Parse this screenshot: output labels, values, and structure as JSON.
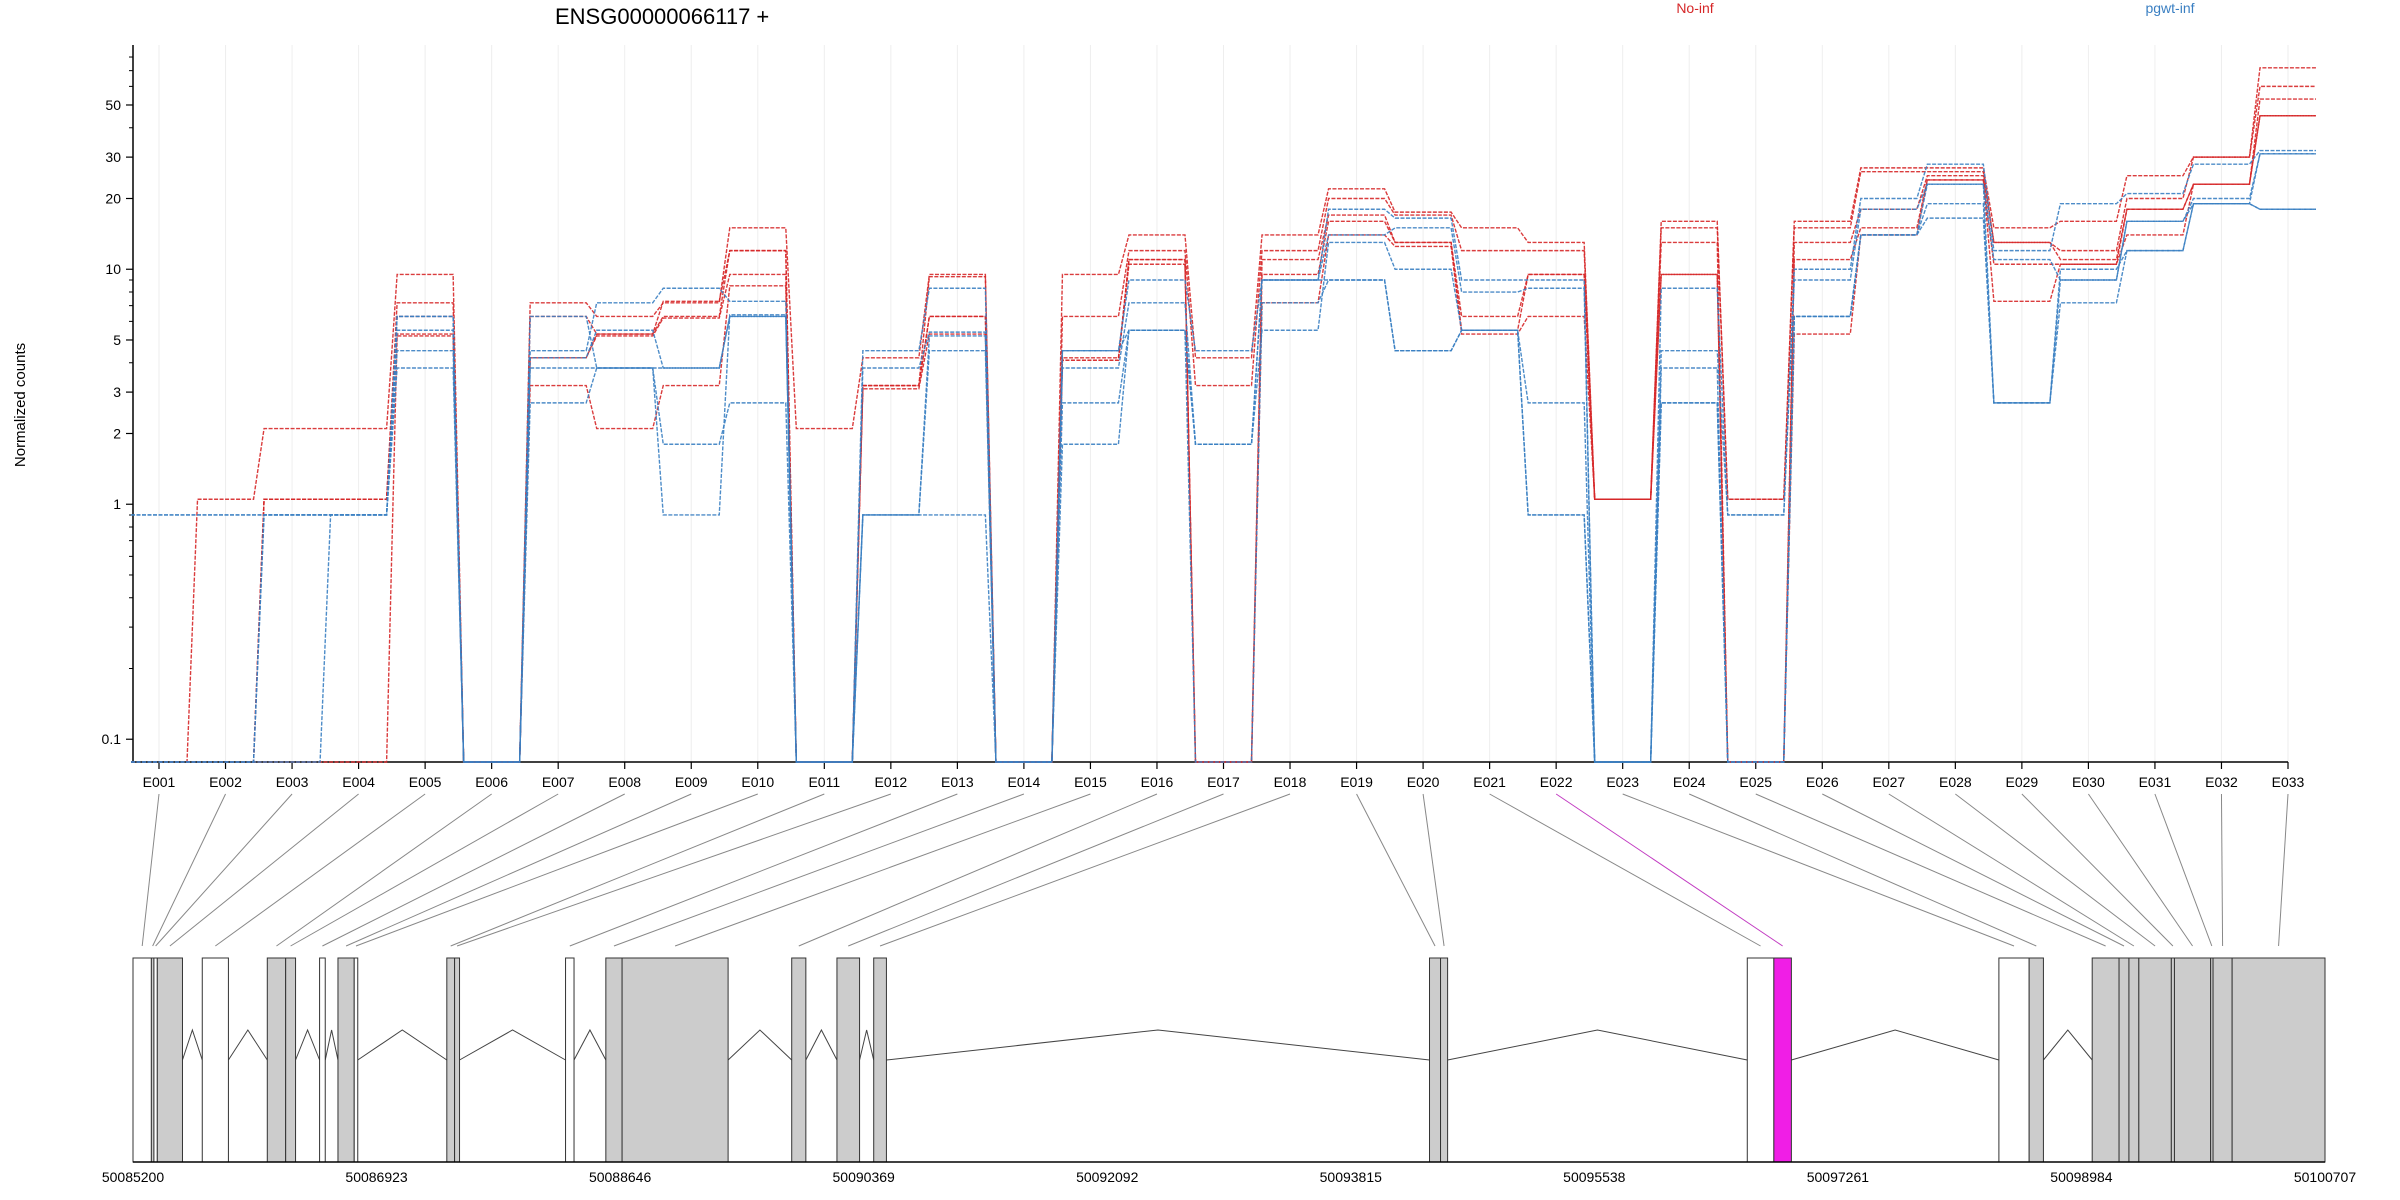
{
  "chart_data": {
    "type": "line",
    "title": "ENSG00000066117 +",
    "ylabel": "Normalized counts",
    "xlabel": "",
    "yscale": "log",
    "ylim": [
      0.08,
      90
    ],
    "grid": true,
    "legend_placement": "top-right",
    "yticks": [
      0.1,
      1,
      2,
      3,
      5,
      10,
      20,
      30,
      50
    ],
    "ytick_labels": [
      "0.1",
      "1",
      "2",
      "3",
      "5",
      "10",
      "20",
      "30",
      "50"
    ],
    "categories": [
      "E001",
      "E002",
      "E003",
      "E004",
      "E005",
      "E006",
      "E007",
      "E008",
      "E009",
      "E010",
      "E011",
      "E012",
      "E013",
      "E014",
      "E015",
      "E016",
      "E017",
      "E018",
      "E019",
      "E020",
      "E021",
      "E022",
      "E023",
      "E024",
      "E025",
      "E026",
      "E027",
      "E028",
      "E029",
      "E030",
      "E031",
      "E032",
      "E033"
    ],
    "series": [
      {
        "name": "No-inf",
        "color": "#d62728",
        "values": [
          0.08,
          1.05,
          2.1,
          2.1,
          9.5,
          0.08,
          7.2,
          6.3,
          7.2,
          15,
          2.1,
          4.2,
          9.5,
          0.08,
          9.5,
          14,
          4.2,
          14,
          22,
          17.5,
          15,
          13,
          1.05,
          16,
          1.05,
          16,
          27,
          27,
          15,
          16,
          25,
          30,
          72
        ]
      },
      {
        "name": "No-inf",
        "color": "#d62728",
        "values": [
          0.08,
          0.08,
          1.05,
          1.05,
          7.2,
          0.08,
          6.3,
          5.3,
          6.3,
          12,
          0.08,
          3.2,
          9.3,
          0.08,
          6.3,
          12,
          3.2,
          12,
          20,
          17,
          12,
          12,
          1.05,
          15,
          1.05,
          15,
          26,
          26,
          13,
          12,
          20,
          30,
          60
        ]
      },
      {
        "name": "No-inf",
        "color": "#d62728",
        "values": [
          0.08,
          0.08,
          1.05,
          1.05,
          6.3,
          0.08,
          4.2,
          5.2,
          6.2,
          9.5,
          0.08,
          3.2,
          6.3,
          0.08,
          4.2,
          11,
          0.08,
          11,
          17,
          13,
          6.3,
          9.5,
          1.05,
          13,
          0.08,
          13,
          18,
          25,
          13,
          11,
          18,
          23,
          53
        ]
      },
      {
        "name": "No-inf",
        "color": "#d62728",
        "values": [
          0.08,
          0.08,
          1.05,
          1.05,
          5.3,
          0.08,
          3.2,
          2.1,
          3.2,
          8.5,
          0.08,
          3.1,
          5.3,
          0.08,
          4.1,
          10.5,
          0.08,
          9.5,
          16,
          13,
          5.5,
          9.5,
          1.05,
          9.5,
          0.08,
          11,
          15,
          24,
          7.3,
          10.5,
          14,
          23,
          45
        ]
      },
      {
        "name": "No-inf",
        "color": "#d62728",
        "values": [
          0.08,
          0.08,
          0.08,
          0.08,
          5.2,
          0.08,
          4.2,
          5.3,
          7.3,
          12,
          0.08,
          3.2,
          6.3,
          0.08,
          4.1,
          11,
          0.08,
          7.2,
          14,
          12.5,
          5.3,
          6.3,
          1.05,
          9.5,
          0.08,
          5.3,
          14,
          24,
          10.5,
          10.5,
          18,
          23,
          45
        ]
      },
      {
        "name": "pgwt-inf",
        "color": "#3a7fc2",
        "values": [
          0.9,
          0.9,
          0.9,
          0.9,
          6.3,
          0.08,
          4.5,
          7.2,
          8.3,
          7.3,
          0.08,
          4.5,
          8.3,
          0.08,
          4.5,
          9,
          4.5,
          9,
          18,
          16.5,
          9,
          9,
          0.08,
          8.3,
          0.9,
          10,
          20,
          28,
          12,
          19,
          21,
          28,
          32
        ]
      },
      {
        "name": "pgwt-inf",
        "color": "#3a7fc2",
        "values": [
          0.08,
          0.08,
          0.08,
          0.9,
          5.5,
          0.08,
          4.2,
          5.5,
          3.8,
          6.3,
          0.08,
          3.8,
          5.4,
          0.08,
          3.8,
          7.2,
          1.8,
          9,
          14,
          15,
          8,
          8.3,
          0.08,
          4.5,
          0.9,
          9,
          18,
          23,
          2.7,
          9,
          16,
          19,
          31
        ]
      },
      {
        "name": "pgwt-inf",
        "color": "#3a7fc2",
        "values": [
          0.08,
          0.08,
          0.9,
          0.9,
          4.5,
          0.08,
          2.7,
          3.8,
          1.8,
          2.7,
          0.08,
          0.9,
          4.5,
          0.08,
          2.7,
          5.5,
          1.8,
          5.5,
          13,
          10,
          5.5,
          2.7,
          0.08,
          3.8,
          0.08,
          6.3,
          14,
          19,
          2.7,
          7.2,
          12,
          19,
          18
        ]
      },
      {
        "name": "pgwt-inf",
        "color": "#3a7fc2",
        "values": [
          0.08,
          0.08,
          0.9,
          0.9,
          3.8,
          0.08,
          3.8,
          3.8,
          0.9,
          6.4,
          0.08,
          0.9,
          5.2,
          0.08,
          1.8,
          5.5,
          0.08,
          7.2,
          9,
          4.5,
          5.5,
          0.9,
          0.08,
          2.7,
          0.08,
          6.3,
          14,
          16.5,
          2.7,
          10,
          12,
          19,
          18
        ]
      },
      {
        "name": "pgwt-inf",
        "color": "#3a7fc2",
        "values": [
          0.9,
          0.9,
          0.9,
          0.9,
          6.3,
          0.08,
          6.3,
          3.8,
          3.8,
          6.3,
          0.08,
          0.9,
          0.9,
          0.08,
          4.5,
          5.5,
          1.8,
          9,
          9,
          4.5,
          5.5,
          0.9,
          0.08,
          2.7,
          0.08,
          6.3,
          14,
          23,
          11,
          9,
          16,
          20,
          31
        ]
      }
    ],
    "genome_axis": {
      "range": [
        50085200,
        50100707
      ],
      "tick_labels": [
        "50085200",
        "50086923",
        "50088646",
        "50090369",
        "50092092",
        "50093815",
        "50095538",
        "50097261",
        "50098984",
        "50100707"
      ],
      "exons": [
        {
          "id": "E001",
          "start": 50085200,
          "end": 50085330,
          "style": "white"
        },
        {
          "id": "E002",
          "start": 50085330,
          "end": 50085348,
          "style": "grey"
        },
        {
          "id": "E003",
          "start": 50085348,
          "end": 50085372,
          "style": "white"
        },
        {
          "id": "E004",
          "start": 50085372,
          "end": 50085550,
          "style": "grey"
        },
        {
          "id": "E005",
          "start": 50085690,
          "end": 50085875,
          "style": "white"
        },
        {
          "id": "E006",
          "start": 50086150,
          "end": 50086280,
          "style": "grey"
        },
        {
          "id": "E007",
          "start": 50086280,
          "end": 50086350,
          "style": "grey"
        },
        {
          "id": "E008",
          "start": 50086520,
          "end": 50086560,
          "style": "white"
        },
        {
          "id": "E009",
          "start": 50086650,
          "end": 50086765,
          "style": "grey"
        },
        {
          "id": "E010",
          "start": 50086765,
          "end": 50086790,
          "style": "white"
        },
        {
          "id": "E011",
          "start": 50087420,
          "end": 50087475,
          "style": "grey"
        },
        {
          "id": "E012",
          "start": 50087475,
          "end": 50087510,
          "style": "grey"
        },
        {
          "id": "E013",
          "start": 50088260,
          "end": 50088320,
          "style": "white"
        },
        {
          "id": "E014",
          "start": 50088545,
          "end": 50088660,
          "style": "grey"
        },
        {
          "id": "E015",
          "start": 50088660,
          "end": 50089410,
          "style": "grey"
        },
        {
          "id": "E016",
          "start": 50089860,
          "end": 50089960,
          "style": "grey"
        },
        {
          "id": "E017",
          "start": 50090180,
          "end": 50090340,
          "style": "grey"
        },
        {
          "id": "E018",
          "start": 50090440,
          "end": 50090530,
          "style": "grey"
        },
        {
          "id": "E019",
          "start": 50094372,
          "end": 50094450,
          "style": "grey"
        },
        {
          "id": "E020",
          "start": 50094450,
          "end": 50094500,
          "style": "grey"
        },
        {
          "id": "E021",
          "start": 50096620,
          "end": 50096808,
          "style": "white"
        },
        {
          "id": "E022",
          "start": 50096808,
          "end": 50096932,
          "style": "magenta"
        },
        {
          "id": "E023",
          "start": 50098400,
          "end": 50098614,
          "style": "white"
        },
        {
          "id": "E024",
          "start": 50098614,
          "end": 50098715,
          "style": "grey"
        },
        {
          "id": "E025",
          "start": 50099060,
          "end": 50099250,
          "style": "grey"
        },
        {
          "id": "E026",
          "start": 50099250,
          "end": 50099320,
          "style": "grey"
        },
        {
          "id": "E027",
          "start": 50099320,
          "end": 50099390,
          "style": "grey"
        },
        {
          "id": "E028",
          "start": 50099390,
          "end": 50099620,
          "style": "grey"
        },
        {
          "id": "E029",
          "start": 50099620,
          "end": 50099642,
          "style": "grey"
        },
        {
          "id": "E030",
          "start": 50099642,
          "end": 50099898,
          "style": "grey"
        },
        {
          "id": "E031",
          "start": 50099898,
          "end": 50099915,
          "style": "grey"
        },
        {
          "id": "E032",
          "start": 50099915,
          "end": 50100050,
          "style": "grey"
        },
        {
          "id": "E033",
          "start": 50100050,
          "end": 50100707,
          "style": "grey"
        }
      ]
    }
  }
}
